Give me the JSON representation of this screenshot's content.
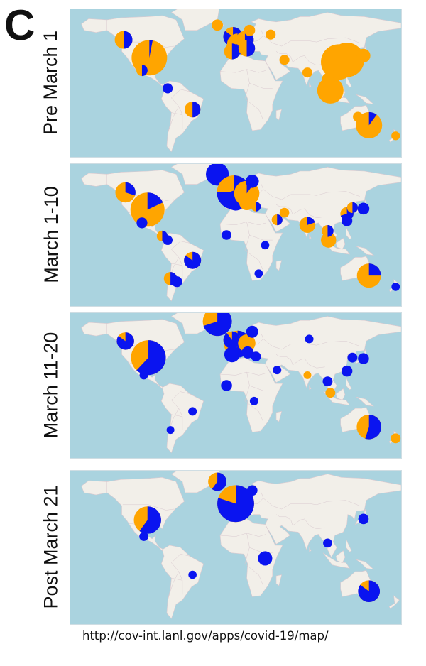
{
  "panel_letter": "C",
  "source_url": "http://cov-int.lanl.gov/apps/covid-19/map/",
  "colors": {
    "ocean": "#aad3df",
    "land": "#f2efe9",
    "border": "#d9c9cf",
    "orange_category": "#ffa500",
    "blue_category": "#0a14f0"
  },
  "map_panels": [
    {
      "label": "Pre March 1",
      "pies": [
        {
          "region": "usa",
          "lon": -94,
          "lat": 34,
          "size": 1.0,
          "blue_fraction": 0.03
        },
        {
          "region": "canada-west",
          "lon": -122,
          "lat": 51,
          "size": 0.25,
          "blue_fraction": 0.5
        },
        {
          "region": "mexico",
          "lon": -102,
          "lat": 22,
          "size": 0.1,
          "blue_fraction": 0.5
        },
        {
          "region": "colombia",
          "lon": -74,
          "lat": 5,
          "size": 0.08,
          "blue_fraction": 1.0
        },
        {
          "region": "brazil",
          "lon": -47,
          "lat": -15,
          "size": 0.2,
          "blue_fraction": 0.5
        },
        {
          "region": "iceland",
          "lon": -20,
          "lat": 65,
          "size": 0.1,
          "blue_fraction": 0.0
        },
        {
          "region": "uk",
          "lon": -3,
          "lat": 54,
          "size": 0.3,
          "blue_fraction": 0.85
        },
        {
          "region": "france",
          "lon": 2,
          "lat": 47,
          "size": 0.35,
          "blue_fraction": 0.7
        },
        {
          "region": "germany",
          "lon": 10,
          "lat": 51,
          "size": 0.25,
          "blue_fraction": 0.6
        },
        {
          "region": "spain",
          "lon": -4,
          "lat": 40,
          "size": 0.2,
          "blue_fraction": 0.5
        },
        {
          "region": "italy",
          "lon": 12,
          "lat": 43,
          "size": 0.22,
          "blue_fraction": 0.5
        },
        {
          "region": "nordic",
          "lon": 15,
          "lat": 60,
          "size": 0.1,
          "blue_fraction": 0.0
        },
        {
          "region": "russia-west",
          "lon": 38,
          "lat": 56,
          "size": 0.08,
          "blue_fraction": 0.0
        },
        {
          "region": "iran",
          "lon": 53,
          "lat": 32,
          "size": 0.08,
          "blue_fraction": 0.0
        },
        {
          "region": "india",
          "lon": 78,
          "lat": 20,
          "size": 0.08,
          "blue_fraction": 0.0
        },
        {
          "region": "china",
          "lon": 112,
          "lat": 30,
          "size": 1.0,
          "blue_fraction": 0.0
        },
        {
          "region": "china-east",
          "lon": 121,
          "lat": 32,
          "size": 0.95,
          "blue_fraction": 0.0
        },
        {
          "region": "japan",
          "lon": 139,
          "lat": 36,
          "size": 0.15,
          "blue_fraction": 0.0
        },
        {
          "region": "southeast-asia",
          "lon": 103,
          "lat": 3,
          "size": 0.55,
          "blue_fraction": 0.0
        },
        {
          "region": "thailand",
          "lon": 100,
          "lat": 14,
          "size": 0.1,
          "blue_fraction": 0.0
        },
        {
          "region": "australia",
          "lon": 145,
          "lat": -30,
          "size": 0.55,
          "blue_fraction": 0.1
        },
        {
          "region": "australia-north",
          "lon": 133,
          "lat": -22,
          "size": 0.08,
          "blue_fraction": 0.0
        },
        {
          "region": "new-zealand",
          "lon": 174,
          "lat": -40,
          "size": 0.06,
          "blue_fraction": 0.0
        }
      ]
    },
    {
      "label": "March 1-10",
      "pies": [
        {
          "region": "usa",
          "lon": -96,
          "lat": 35,
          "size": 1.0,
          "blue_fraction": 0.18
        },
        {
          "region": "canada-west",
          "lon": -120,
          "lat": 52,
          "size": 0.35,
          "blue_fraction": 0.3
        },
        {
          "region": "mexico",
          "lon": -102,
          "lat": 22,
          "size": 0.1,
          "blue_fraction": 1.0
        },
        {
          "region": "panama",
          "lon": -80,
          "lat": 9,
          "size": 0.1,
          "blue_fraction": 0.5
        },
        {
          "region": "colombia",
          "lon": -74,
          "lat": 5,
          "size": 0.08,
          "blue_fraction": 1.0
        },
        {
          "region": "brazil",
          "lon": -47,
          "lat": -15,
          "size": 0.25,
          "blue_fraction": 0.85
        },
        {
          "region": "chile",
          "lon": -71,
          "lat": -33,
          "size": 0.15,
          "blue_fraction": 0.5
        },
        {
          "region": "argentina",
          "lon": -64,
          "lat": -36,
          "size": 0.1,
          "blue_fraction": 1.0
        },
        {
          "region": "iceland",
          "lon": -20,
          "lat": 70,
          "size": 0.45,
          "blue_fraction": 1.0
        },
        {
          "region": "europe-main",
          "lon": -2,
          "lat": 52,
          "size": 1.0,
          "blue_fraction": 0.75
        },
        {
          "region": "france-sw",
          "lon": 0,
          "lat": 44,
          "size": 0.35,
          "blue_fraction": 1.0
        },
        {
          "region": "germany",
          "lon": 12,
          "lat": 51,
          "size": 0.55,
          "blue_fraction": 0.1
        },
        {
          "region": "nordic",
          "lon": 18,
          "lat": 63,
          "size": 0.15,
          "blue_fraction": 1.0
        },
        {
          "region": "italy",
          "lon": 12,
          "lat": 42,
          "size": 0.2,
          "blue_fraction": 0.0
        },
        {
          "region": "greece",
          "lon": 22,
          "lat": 38,
          "size": 0.08,
          "blue_fraction": 0.5
        },
        {
          "region": "west-africa",
          "lon": -10,
          "lat": 10,
          "size": 0.08,
          "blue_fraction": 1.0
        },
        {
          "region": "east-africa",
          "lon": 32,
          "lat": 0,
          "size": 0.06,
          "blue_fraction": 1.0
        },
        {
          "region": "south-africa",
          "lon": 25,
          "lat": -28,
          "size": 0.06,
          "blue_fraction": 1.0
        },
        {
          "region": "middle-east",
          "lon": 45,
          "lat": 25,
          "size": 0.1,
          "blue_fraction": 0.5
        },
        {
          "region": "iran",
          "lon": 53,
          "lat": 32,
          "size": 0.08,
          "blue_fraction": 0.0
        },
        {
          "region": "india",
          "lon": 78,
          "lat": 20,
          "size": 0.22,
          "blue_fraction": 0.2
        },
        {
          "region": "southeast-asia",
          "lon": 101,
          "lat": 5,
          "size": 0.2,
          "blue_fraction": 0.0
        },
        {
          "region": "thailand",
          "lon": 100,
          "lat": 14,
          "size": 0.12,
          "blue_fraction": 0.5
        },
        {
          "region": "china-east",
          "lon": 121,
          "lat": 31,
          "size": 0.15,
          "blue_fraction": 0.7
        },
        {
          "region": "taiwan",
          "lon": 121,
          "lat": 24,
          "size": 0.1,
          "blue_fraction": 1.0
        },
        {
          "region": "japan",
          "lon": 139,
          "lat": 36,
          "size": 0.12,
          "blue_fraction": 1.0
        },
        {
          "region": "korea",
          "lon": 127,
          "lat": 37,
          "size": 0.1,
          "blue_fraction": 0.5
        },
        {
          "region": "australia",
          "lon": 145,
          "lat": -30,
          "size": 0.5,
          "blue_fraction": 0.25
        },
        {
          "region": "new-zealand",
          "lon": 174,
          "lat": -41,
          "size": 0.06,
          "blue_fraction": 1.0
        }
      ]
    },
    {
      "label": "March 11-20",
      "pies": [
        {
          "region": "usa",
          "lon": -95,
          "lat": 37,
          "size": 1.0,
          "blue_fraction": 0.62
        },
        {
          "region": "canada-west",
          "lon": -120,
          "lat": 53,
          "size": 0.25,
          "blue_fraction": 0.85
        },
        {
          "region": "mexico",
          "lon": -100,
          "lat": 20,
          "size": 0.06,
          "blue_fraction": 1.0
        },
        {
          "region": "brazil",
          "lon": -47,
          "lat": -15,
          "size": 0.06,
          "blue_fraction": 1.0
        },
        {
          "region": "chile",
          "lon": -71,
          "lat": -33,
          "size": 0.05,
          "blue_fraction": 1.0
        },
        {
          "region": "iceland",
          "lon": -20,
          "lat": 72,
          "size": 0.7,
          "blue_fraction": 0.7
        },
        {
          "region": "europe-main",
          "lon": 2,
          "lat": 50,
          "size": 0.6,
          "blue_fraction": 0.6
        },
        {
          "region": "uk",
          "lon": -4,
          "lat": 54,
          "size": 0.25,
          "blue_fraction": 0.9
        },
        {
          "region": "spain",
          "lon": -4,
          "lat": 40,
          "size": 0.2,
          "blue_fraction": 1.0
        },
        {
          "region": "germany",
          "lon": 12,
          "lat": 51,
          "size": 0.25,
          "blue_fraction": 0.0
        },
        {
          "region": "nordic",
          "lon": 18,
          "lat": 62,
          "size": 0.12,
          "blue_fraction": 1.0
        },
        {
          "region": "italy",
          "lon": 13,
          "lat": 42,
          "size": 0.12,
          "blue_fraction": 1.0
        },
        {
          "region": "greece",
          "lon": 22,
          "lat": 38,
          "size": 0.08,
          "blue_fraction": 1.0
        },
        {
          "region": "west-africa",
          "lon": -10,
          "lat": 10,
          "size": 0.1,
          "blue_fraction": 1.0
        },
        {
          "region": "central-africa",
          "lon": 20,
          "lat": -5,
          "size": 0.06,
          "blue_fraction": 1.0
        },
        {
          "region": "middle-east",
          "lon": 45,
          "lat": 25,
          "size": 0.06,
          "blue_fraction": 1.0
        },
        {
          "region": "russia-central",
          "lon": 80,
          "lat": 55,
          "size": 0.06,
          "blue_fraction": 1.0
        },
        {
          "region": "india",
          "lon": 78,
          "lat": 20,
          "size": 0.05,
          "blue_fraction": 0.0
        },
        {
          "region": "thailand",
          "lon": 100,
          "lat": 14,
          "size": 0.08,
          "blue_fraction": 1.0
        },
        {
          "region": "southeast-asia",
          "lon": 103,
          "lat": 3,
          "size": 0.08,
          "blue_fraction": 0.0
        },
        {
          "region": "taiwan",
          "lon": 121,
          "lat": 24,
          "size": 0.1,
          "blue_fraction": 1.0
        },
        {
          "region": "japan",
          "lon": 139,
          "lat": 36,
          "size": 0.1,
          "blue_fraction": 1.0
        },
        {
          "region": "korea",
          "lon": 127,
          "lat": 37,
          "size": 0.08,
          "blue_fraction": 1.0
        },
        {
          "region": "australia",
          "lon": 145,
          "lat": -30,
          "size": 0.5,
          "blue_fraction": 0.55
        },
        {
          "region": "new-zealand",
          "lon": 174,
          "lat": -41,
          "size": 0.08,
          "blue_fraction": 0.0
        }
      ]
    },
    {
      "label": "Post March 21",
      "pies": [
        {
          "region": "usa",
          "lon": -96,
          "lat": 35,
          "size": 0.55,
          "blue_fraction": 0.6
        },
        {
          "region": "mexico",
          "lon": -100,
          "lat": 20,
          "size": 0.06,
          "blue_fraction": 1.0
        },
        {
          "region": "brazil",
          "lon": -47,
          "lat": -15,
          "size": 0.05,
          "blue_fraction": 1.0
        },
        {
          "region": "iceland",
          "lon": -20,
          "lat": 70,
          "size": 0.25,
          "blue_fraction": 0.6
        },
        {
          "region": "europe-main",
          "lon": 0,
          "lat": 50,
          "size": 1.0,
          "blue_fraction": 0.8
        },
        {
          "region": "spain",
          "lon": -4,
          "lat": 40,
          "size": 0.15,
          "blue_fraction": 1.0
        },
        {
          "region": "nordic",
          "lon": 18,
          "lat": 62,
          "size": 0.08,
          "blue_fraction": 1.0
        },
        {
          "region": "east-africa",
          "lon": 32,
          "lat": 0,
          "size": 0.15,
          "blue_fraction": 1.0
        },
        {
          "region": "thailand",
          "lon": 100,
          "lat": 14,
          "size": 0.06,
          "blue_fraction": 1.0
        },
        {
          "region": "japan",
          "lon": 139,
          "lat": 36,
          "size": 0.08,
          "blue_fraction": 1.0
        },
        {
          "region": "australia",
          "lon": 145,
          "lat": -30,
          "size": 0.35,
          "blue_fraction": 0.85
        }
      ]
    }
  ]
}
